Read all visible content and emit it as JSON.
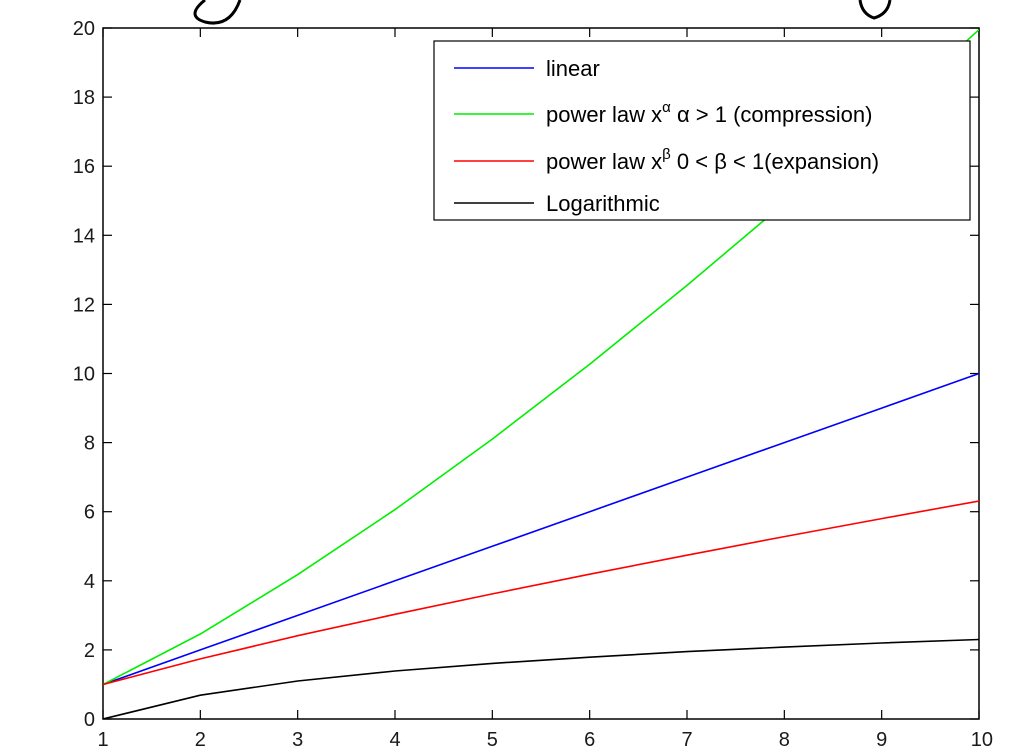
{
  "chart_data": {
    "type": "line",
    "title": "",
    "xlabel": "",
    "ylabel": "",
    "xlim": [
      1,
      10
    ],
    "ylim": [
      0,
      20
    ],
    "x_ticks": [
      1,
      2,
      3,
      4,
      5,
      6,
      7,
      8,
      9,
      10
    ],
    "y_ticks": [
      0,
      2,
      4,
      6,
      8,
      10,
      12,
      14,
      16,
      18,
      20
    ],
    "grid": false,
    "legend_position": "top-right",
    "x": [
      1,
      2,
      3,
      4,
      5,
      6,
      7,
      8,
      9,
      10
    ],
    "series": [
      {
        "name": "linear",
        "color": "#0000ff",
        "values": [
          1,
          2,
          3,
          4,
          5,
          6,
          7,
          8,
          9,
          10
        ]
      },
      {
        "name": "power law x^α α > 1 (compression)",
        "legend": {
          "pre": "power law x",
          "sup": "α",
          "post": " α > 1 (compression)"
        },
        "color": "#00ee00",
        "values": [
          1,
          2.46,
          4.18,
          6.06,
          8.1,
          10.27,
          12.55,
          14.93,
          17.4,
          19.95
        ]
      },
      {
        "name": "power law x^β 0 < β < 1(expansion)",
        "legend": {
          "pre": "power law x",
          "sup": "β",
          "post": " 0 < β < 1(expansion)"
        },
        "color": "#ff0000",
        "values": [
          1,
          1.74,
          2.41,
          3.03,
          3.62,
          4.19,
          4.74,
          5.28,
          5.8,
          6.31
        ]
      },
      {
        "name": "Logarithmic",
        "color": "#000000",
        "values": [
          0,
          0.69,
          1.1,
          1.39,
          1.61,
          1.79,
          1.95,
          2.08,
          2.2,
          2.3
        ]
      }
    ]
  }
}
